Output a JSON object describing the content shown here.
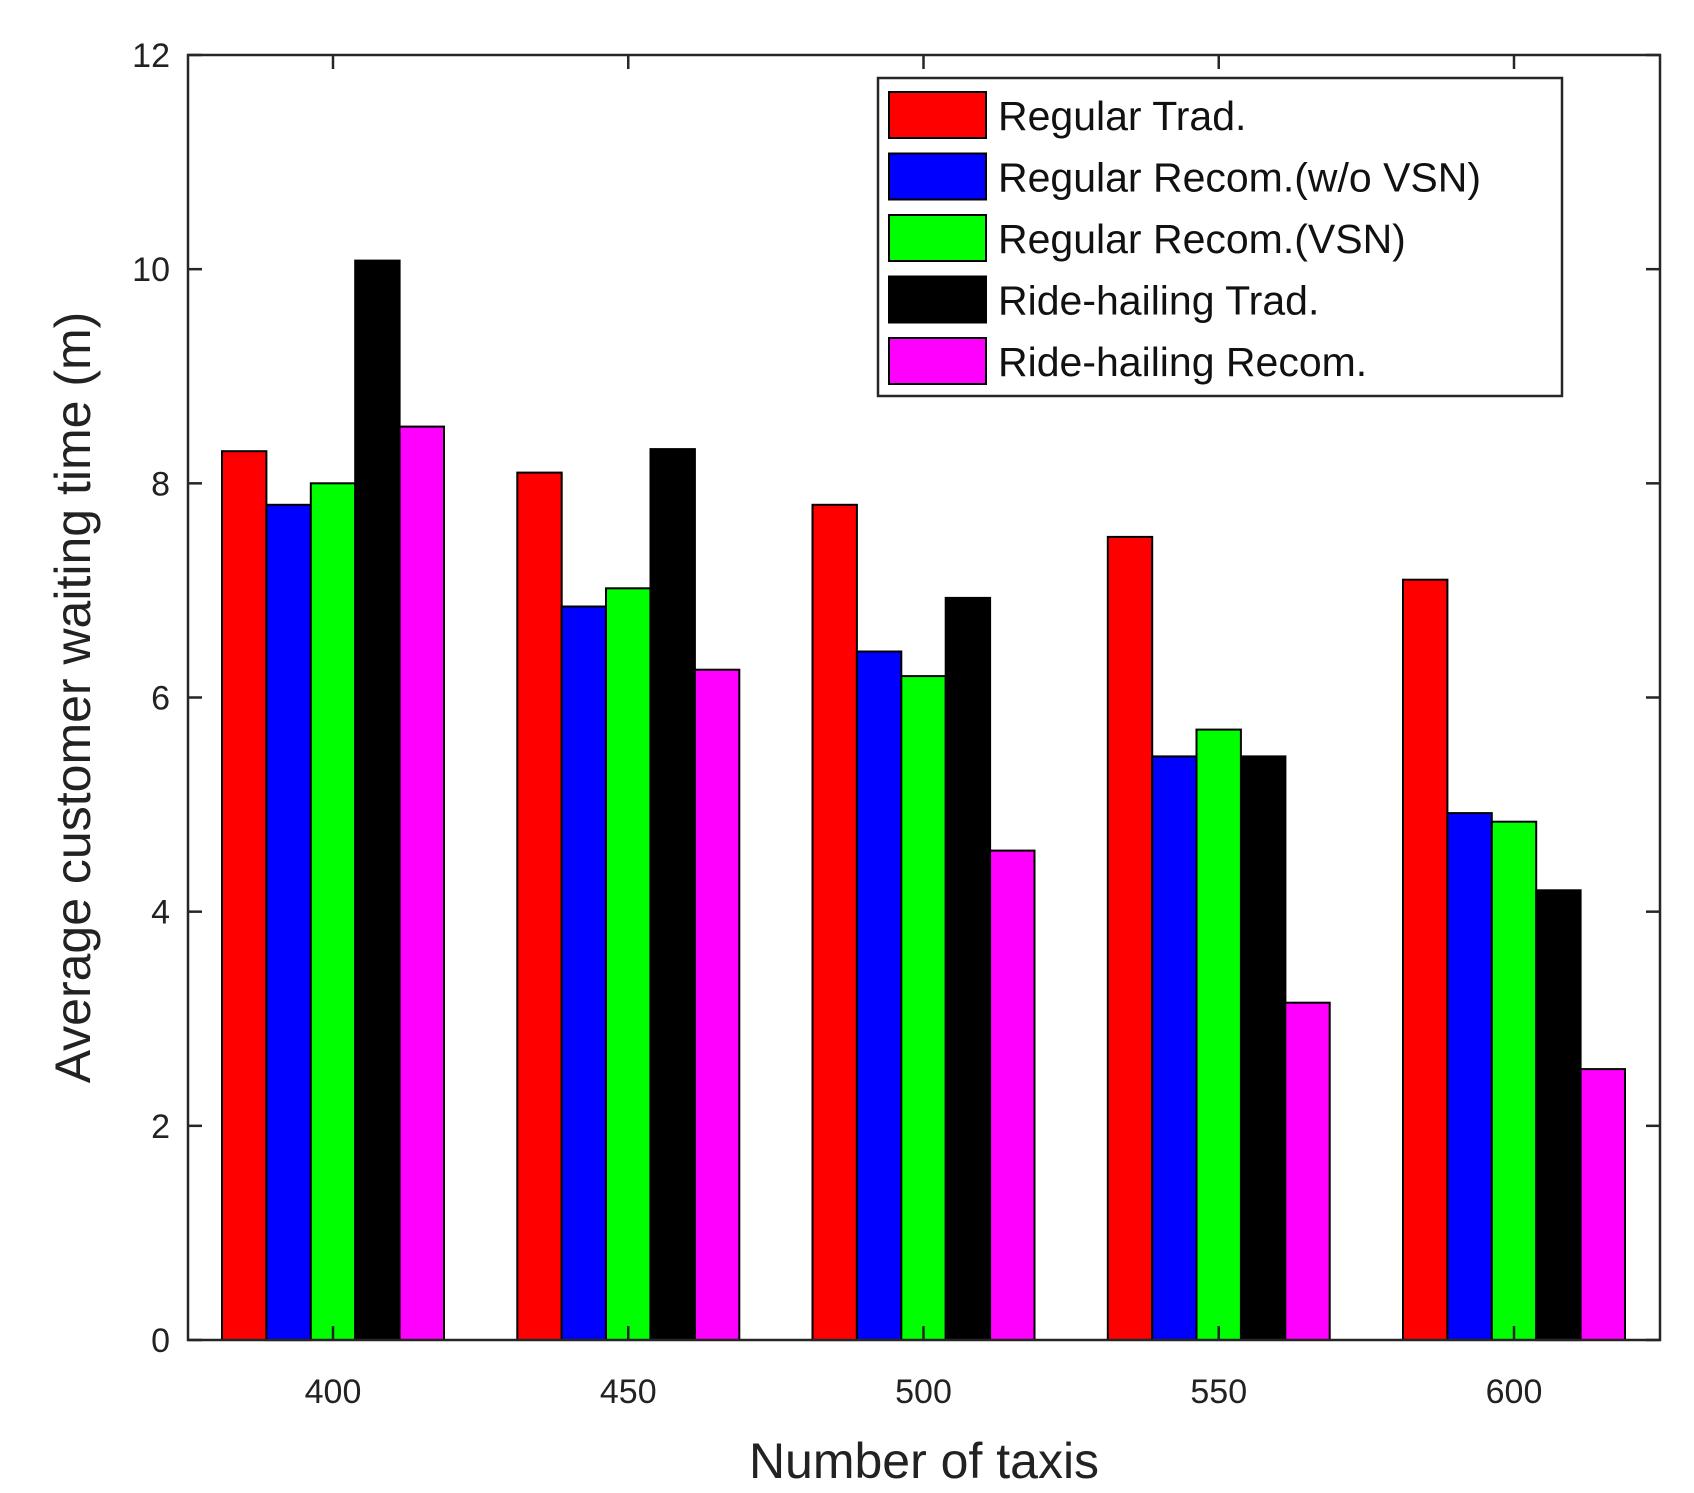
{
  "chart_data": {
    "type": "bar",
    "title": "",
    "xlabel": "Number of taxis",
    "ylabel": "Average customer waiting time (m)",
    "ylim": [
      0,
      12
    ],
    "yticks": [
      0,
      2,
      4,
      6,
      8,
      10,
      12
    ],
    "categories": [
      "400",
      "450",
      "500",
      "550",
      "600"
    ],
    "legend_position": "top-right",
    "series": [
      {
        "name": "Regular Trad.",
        "color": "#ff0000",
        "values": [
          8.3,
          8.1,
          7.8,
          7.5,
          7.1
        ]
      },
      {
        "name": "Regular Recom.(w/o VSN)",
        "color": "#0000ff",
        "values": [
          7.8,
          6.85,
          6.43,
          5.45,
          4.92
        ]
      },
      {
        "name": "Regular Recom.(VSN)",
        "color": "#00ff00",
        "values": [
          8.0,
          7.02,
          6.2,
          5.7,
          4.84
        ]
      },
      {
        "name": "Ride-hailing Trad.",
        "color": "#000000",
        "values": [
          10.08,
          8.32,
          6.93,
          5.45,
          4.2
        ]
      },
      {
        "name": "Ride-hailing Recom.",
        "color": "#ff00ff",
        "values": [
          8.53,
          6.26,
          4.57,
          3.15,
          2.53
        ]
      }
    ]
  }
}
